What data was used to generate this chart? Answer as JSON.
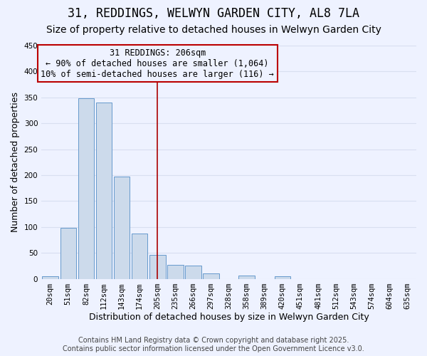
{
  "title": "31, REDDINGS, WELWYN GARDEN CITY, AL8 7LA",
  "subtitle": "Size of property relative to detached houses in Welwyn Garden City",
  "xlabel": "Distribution of detached houses by size in Welwyn Garden City",
  "ylabel": "Number of detached properties",
  "bar_labels": [
    "20sqm",
    "51sqm",
    "82sqm",
    "112sqm",
    "143sqm",
    "174sqm",
    "205sqm",
    "235sqm",
    "266sqm",
    "297sqm",
    "328sqm",
    "358sqm",
    "389sqm",
    "420sqm",
    "451sqm",
    "481sqm",
    "512sqm",
    "543sqm",
    "574sqm",
    "604sqm",
    "635sqm"
  ],
  "bar_values": [
    5,
    98,
    348,
    340,
    197,
    87,
    46,
    27,
    25,
    10,
    0,
    6,
    0,
    5,
    0,
    0,
    0,
    0,
    0,
    0,
    0
  ],
  "bar_color": "#ccdaeb",
  "bar_edge_color": "#6699cc",
  "vline_x_index": 6,
  "vline_color": "#aa0000",
  "annotation_title": "31 REDDINGS: 206sqm",
  "annotation_line1": "← 90% of detached houses are smaller (1,064)",
  "annotation_line2": "10% of semi-detached houses are larger (116) →",
  "annotation_box_edge_color": "#bb0000",
  "ylim": [
    0,
    450
  ],
  "yticks": [
    0,
    50,
    100,
    150,
    200,
    250,
    300,
    350,
    400,
    450
  ],
  "footer_line1": "Contains HM Land Registry data © Crown copyright and database right 2025.",
  "footer_line2": "Contains public sector information licensed under the Open Government Licence v3.0.",
  "background_color": "#eef2ff",
  "grid_color": "#d8dff0",
  "title_fontsize": 12,
  "subtitle_fontsize": 10,
  "axis_label_fontsize": 9,
  "tick_fontsize": 7.5,
  "footer_fontsize": 7,
  "annotation_fontsize": 8.5
}
